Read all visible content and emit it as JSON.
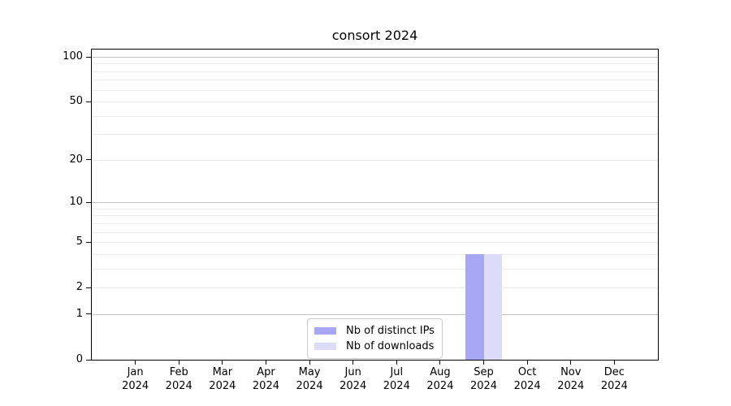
{
  "chart_data": {
    "type": "bar",
    "title": "consort 2024",
    "categories": [
      "Jan",
      "Feb",
      "Mar",
      "Apr",
      "May",
      "Jun",
      "Jul",
      "Aug",
      "Sep",
      "Oct",
      "Nov",
      "Dec"
    ],
    "category_year": "2024",
    "series": [
      {
        "name": "Nb of distinct IPs",
        "color": "#a7a7f5",
        "values": [
          0,
          0,
          0,
          0,
          0,
          0,
          0,
          0,
          4,
          0,
          0,
          0
        ]
      },
      {
        "name": "Nb of downloads",
        "color": "#dcdcf9",
        "values": [
          0,
          0,
          0,
          0,
          0,
          0,
          0,
          0,
          4,
          0,
          0,
          0
        ]
      }
    ],
    "xlabel": "",
    "ylabel": "",
    "yscale": "log1p",
    "ylim": [
      0,
      112
    ],
    "y_ticks": [
      0,
      1,
      2,
      5,
      10,
      20,
      50,
      100
    ],
    "y_major_gridlines": [
      1,
      10,
      100
    ],
    "y_minor_gridlines": [
      2,
      3,
      4,
      5,
      6,
      7,
      8,
      9,
      20,
      30,
      40,
      50,
      60,
      70,
      80,
      90
    ],
    "grid": "horizontal",
    "legend_position": "lower center"
  }
}
